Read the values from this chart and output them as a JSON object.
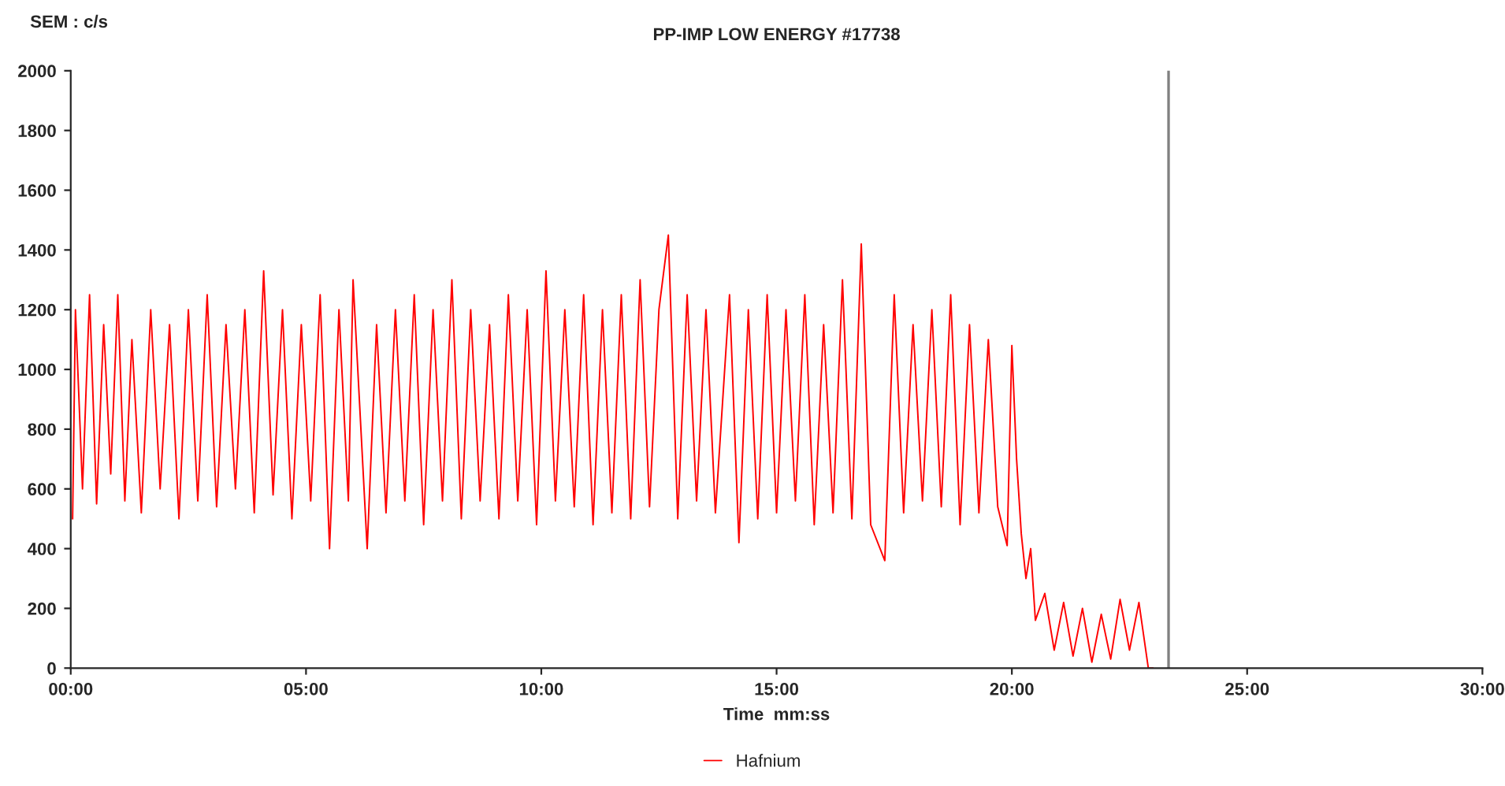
{
  "chart_data": {
    "type": "line",
    "title": "PP-IMP LOW ENERGY #17738",
    "xlabel": "Time  mm:ss",
    "ylabel": "SEM : c/s",
    "series": [
      {
        "name": "Hafnium",
        "color": "#ff0000",
        "x": [
          0.04,
          0.1,
          0.25,
          0.4,
          0.55,
          0.7,
          0.85,
          1.0,
          1.15,
          1.3,
          1.5,
          1.7,
          1.9,
          2.1,
          2.3,
          2.5,
          2.7,
          2.9,
          3.1,
          3.3,
          3.5,
          3.7,
          3.9,
          4.1,
          4.3,
          4.5,
          4.7,
          4.9,
          5.1,
          5.3,
          5.5,
          5.7,
          5.9,
          6.0,
          6.3,
          6.5,
          6.7,
          6.9,
          7.1,
          7.3,
          7.5,
          7.7,
          7.9,
          8.1,
          8.3,
          8.5,
          8.7,
          8.9,
          9.1,
          9.3,
          9.5,
          9.7,
          9.9,
          10.1,
          10.3,
          10.5,
          10.7,
          10.9,
          11.1,
          11.3,
          11.5,
          11.7,
          11.9,
          12.1,
          12.3,
          12.5,
          12.7,
          12.9,
          13.1,
          13.3,
          13.5,
          13.7,
          14.0,
          14.2,
          14.4,
          14.6,
          14.8,
          15.0,
          15.2,
          15.4,
          15.6,
          15.8,
          16.0,
          16.2,
          16.4,
          16.6,
          16.8,
          17.0,
          17.3,
          17.5,
          17.7,
          17.9,
          18.1,
          18.3,
          18.5,
          18.7,
          18.9,
          19.1,
          19.3,
          19.5,
          19.7,
          19.9,
          20.0,
          20.1,
          20.2,
          20.3,
          20.4,
          20.5,
          20.7,
          20.9,
          21.1,
          21.3,
          21.5,
          21.7,
          21.9,
          22.1,
          22.3,
          22.5,
          22.7,
          22.9,
          23.0
        ],
        "values": [
          500,
          1200,
          600,
          1250,
          550,
          1150,
          650,
          1250,
          560,
          1100,
          520,
          1200,
          600,
          1150,
          500,
          1200,
          560,
          1250,
          540,
          1150,
          600,
          1200,
          520,
          1330,
          580,
          1200,
          500,
          1150,
          560,
          1250,
          400,
          1200,
          560,
          1300,
          400,
          1150,
          520,
          1200,
          560,
          1250,
          480,
          1200,
          560,
          1300,
          500,
          1200,
          560,
          1150,
          500,
          1250,
          560,
          1200,
          480,
          1330,
          560,
          1200,
          540,
          1250,
          480,
          1200,
          520,
          1250,
          500,
          1300,
          540,
          1200,
          1450,
          500,
          1250,
          560,
          1200,
          520,
          1250,
          420,
          1200,
          500,
          1250,
          520,
          1200,
          560,
          1250,
          480,
          1150,
          520,
          1300,
          500,
          1420,
          480,
          360,
          1250,
          520,
          1150,
          560,
          1200,
          540,
          1250,
          480,
          1150,
          520,
          1100,
          540,
          410,
          1080,
          700,
          450,
          300,
          400,
          160,
          250,
          60,
          220,
          40,
          200,
          20,
          180,
          30,
          230,
          60,
          220,
          0,
          0
        ]
      }
    ],
    "xlim": [
      0,
      30
    ],
    "xticks": [
      {
        "value": 0,
        "label": "00:00"
      },
      {
        "value": 5,
        "label": "05:00"
      },
      {
        "value": 10,
        "label": "10:00"
      },
      {
        "value": 15,
        "label": "15:00"
      },
      {
        "value": 20,
        "label": "20:00"
      },
      {
        "value": 25,
        "label": "25:00"
      },
      {
        "value": 30,
        "label": "30:00"
      }
    ],
    "ylim": [
      0,
      2000
    ],
    "yticks": [
      0,
      200,
      400,
      600,
      800,
      1000,
      1200,
      1400,
      1600,
      1800,
      2000
    ],
    "ref_lines": [
      {
        "axis": "x",
        "value": 23.33,
        "color": "#808080"
      }
    ],
    "grid": false,
    "legend": "bottom",
    "marker": "none",
    "line_style": "solid"
  }
}
